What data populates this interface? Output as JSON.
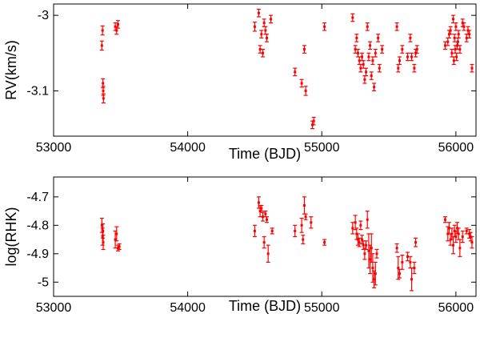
{
  "chart_data": [
    {
      "type": "scatter",
      "title": "",
      "xlabel": "Time (BJD)",
      "ylabel": "RV(km/s)",
      "xlim": [
        53000,
        56150
      ],
      "ylim": [
        -3.16,
        -2.985
      ],
      "xticks": [
        53000,
        54000,
        55000,
        56000
      ],
      "xtick_labels": [
        "53000",
        "54000",
        "55000",
        "56000"
      ],
      "yticks": [
        -3,
        -3.1
      ],
      "ytick_labels": [
        "-3",
        "-3.1"
      ],
      "grid": false,
      "legend": "none",
      "error_bars": true,
      "series": [
        {
          "color": "#ff0000",
          "points": [
            [
              53360,
              -3.04,
              0.006
            ],
            [
              53365,
              -3.02,
              0.006
            ],
            [
              53368,
              -3.09,
              0.006
            ],
            [
              53370,
              -3.1,
              0.006
            ],
            [
              53372,
              -3.11,
              0.006
            ],
            [
              53460,
              -3.015,
              0.005
            ],
            [
              53470,
              -3.02,
              0.005
            ],
            [
              53480,
              -3.012,
              0.005
            ],
            [
              54500,
              -3.015,
              0.006
            ],
            [
              54530,
              -2.997,
              0.005
            ],
            [
              54540,
              -3.045,
              0.005
            ],
            [
              54550,
              -3.025,
              0.005
            ],
            [
              54560,
              -3.05,
              0.005
            ],
            [
              54570,
              -3.01,
              0.005
            ],
            [
              54580,
              -3.02,
              0.005
            ],
            [
              54590,
              -3.03,
              0.005
            ],
            [
              54620,
              -3.005,
              0.005
            ],
            [
              54800,
              -3.075,
              0.005
            ],
            [
              54850,
              -3.09,
              0.005
            ],
            [
              54870,
              -3.045,
              0.005
            ],
            [
              54880,
              -3.1,
              0.006
            ],
            [
              54930,
              -3.145,
              0.005
            ],
            [
              54940,
              -3.14,
              0.005
            ],
            [
              55020,
              -3.015,
              0.005
            ],
            [
              55230,
              -3.003,
              0.005
            ],
            [
              55250,
              -3.045,
              0.005
            ],
            [
              55260,
              -3.03,
              0.005
            ],
            [
              55270,
              -3.05,
              0.005
            ],
            [
              55280,
              -3.06,
              0.005
            ],
            [
              55290,
              -3.07,
              0.005
            ],
            [
              55300,
              -3.055,
              0.005
            ],
            [
              55310,
              -3.065,
              0.005
            ],
            [
              55320,
              -3.085,
              0.005
            ],
            [
              55330,
              -3.075,
              0.005
            ],
            [
              55340,
              -3.015,
              0.005
            ],
            [
              55350,
              -3.055,
              0.005
            ],
            [
              55360,
              -3.04,
              0.005
            ],
            [
              55370,
              -3.08,
              0.005
            ],
            [
              55380,
              -3.06,
              0.005
            ],
            [
              55390,
              -3.095,
              0.005
            ],
            [
              55400,
              -3.05,
              0.005
            ],
            [
              55420,
              -3.03,
              0.005
            ],
            [
              55430,
              -3.07,
              0.005
            ],
            [
              55450,
              -3.045,
              0.005
            ],
            [
              55560,
              -3.015,
              0.005
            ],
            [
              55570,
              -3.07,
              0.005
            ],
            [
              55580,
              -3.06,
              0.005
            ],
            [
              55600,
              -3.045,
              0.005
            ],
            [
              55640,
              -3.055,
              0.005
            ],
            [
              55660,
              -3.03,
              0.005
            ],
            [
              55670,
              -3.055,
              0.005
            ],
            [
              55690,
              -3.07,
              0.005
            ],
            [
              55700,
              -3.05,
              0.005
            ],
            [
              55710,
              -3.045,
              0.005
            ],
            [
              55920,
              -3.04,
              0.005
            ],
            [
              55940,
              -3.035,
              0.005
            ],
            [
              55950,
              -3.025,
              0.005
            ],
            [
              55960,
              -3.02,
              0.005
            ],
            [
              55970,
              -3.05,
              0.005
            ],
            [
              55980,
              -3.005,
              0.005
            ],
            [
              55985,
              -3.06,
              0.005
            ],
            [
              55990,
              -3.03,
              0.005
            ],
            [
              55995,
              -3.045,
              0.005
            ],
            [
              56000,
              -3.015,
              0.005
            ],
            [
              56005,
              -3.055,
              0.005
            ],
            [
              56010,
              -3.04,
              0.005
            ],
            [
              56015,
              -3.035,
              0.005
            ],
            [
              56020,
              -3.025,
              0.005
            ],
            [
              56030,
              -3.045,
              0.005
            ],
            [
              56050,
              -3.01,
              0.005
            ],
            [
              56060,
              -3.015,
              0.005
            ],
            [
              56080,
              -3.03,
              0.005
            ],
            [
              56090,
              -3.02,
              0.005
            ],
            [
              56100,
              -3.025,
              0.005
            ],
            [
              56120,
              -3.07,
              0.005
            ]
          ]
        }
      ]
    },
    {
      "type": "scatter",
      "title": "",
      "xlabel": "Time (BJD)",
      "ylabel": "log(RHK)",
      "xlim": [
        53000,
        56150
      ],
      "ylim": [
        -5.05,
        -4.63
      ],
      "xticks": [
        53000,
        54000,
        55000,
        56000
      ],
      "xtick_labels": [
        "53000",
        "54000",
        "55000",
        "56000"
      ],
      "yticks": [
        -4.7,
        -4.8,
        -4.9,
        -5
      ],
      "ytick_labels": [
        "-4.7",
        "-4.8",
        "-4.9",
        "-5"
      ],
      "grid": false,
      "legend": "none",
      "error_bars": true,
      "series": [
        {
          "color": "#ff0000",
          "points": [
            [
              53360,
              -4.8,
              0.025
            ],
            [
              53365,
              -4.84,
              0.03
            ],
            [
              53368,
              -4.82,
              0.025
            ],
            [
              53370,
              -4.86,
              0.025
            ],
            [
              53460,
              -4.85,
              0.03
            ],
            [
              53470,
              -4.83,
              0.025
            ],
            [
              53480,
              -4.88,
              0.01
            ],
            [
              53490,
              -4.875,
              0.01
            ],
            [
              54500,
              -4.82,
              0.02
            ],
            [
              54530,
              -4.72,
              0.02
            ],
            [
              54540,
              -4.75,
              0.02
            ],
            [
              54550,
              -4.74,
              0.01
            ],
            [
              54560,
              -4.77,
              0.015
            ],
            [
              54570,
              -4.86,
              0.02
            ],
            [
              54580,
              -4.76,
              0.01
            ],
            [
              54590,
              -4.78,
              0.01
            ],
            [
              54600,
              -4.9,
              0.03
            ],
            [
              54630,
              -4.82,
              0.01
            ],
            [
              54800,
              -4.82,
              0.02
            ],
            [
              54850,
              -4.8,
              0.025
            ],
            [
              54860,
              -4.85,
              0.015
            ],
            [
              54870,
              -4.73,
              0.03
            ],
            [
              54880,
              -4.77,
              0.01
            ],
            [
              54920,
              -4.79,
              0.02
            ],
            [
              55020,
              -4.86,
              0.01
            ],
            [
              55230,
              -4.81,
              0.02
            ],
            [
              55250,
              -4.79,
              0.025
            ],
            [
              55260,
              -4.83,
              0.02
            ],
            [
              55270,
              -4.85,
              0.02
            ],
            [
              55280,
              -4.86,
              0.015
            ],
            [
              55290,
              -4.8,
              0.015
            ],
            [
              55300,
              -4.85,
              0.015
            ],
            [
              55310,
              -4.87,
              0.015
            ],
            [
              55320,
              -4.9,
              0.02
            ],
            [
              55330,
              -4.87,
              0.015
            ],
            [
              55340,
              -4.78,
              0.03
            ],
            [
              55350,
              -4.89,
              0.06
            ],
            [
              55360,
              -4.92,
              0.05
            ],
            [
              55370,
              -4.88,
              0.05
            ],
            [
              55380,
              -4.95,
              0.05
            ],
            [
              55390,
              -4.99,
              0.03
            ],
            [
              55400,
              -4.97,
              0.04
            ],
            [
              55410,
              -4.9,
              0.015
            ],
            [
              55560,
              -4.88,
              0.015
            ],
            [
              55570,
              -4.95,
              0.04
            ],
            [
              55580,
              -4.97,
              0.015
            ],
            [
              55600,
              -4.93,
              0.025
            ],
            [
              55640,
              -4.91,
              0.015
            ],
            [
              55660,
              -4.93,
              0.02
            ],
            [
              55670,
              -4.99,
              0.04
            ],
            [
              55690,
              -4.95,
              0.02
            ],
            [
              55700,
              -4.86,
              0.015
            ],
            [
              55920,
              -4.78,
              0.01
            ],
            [
              55940,
              -4.83,
              0.025
            ],
            [
              55950,
              -4.81,
              0.02
            ],
            [
              55960,
              -4.85,
              0.02
            ],
            [
              55970,
              -4.83,
              0.02
            ],
            [
              55980,
              -4.87,
              0.03
            ],
            [
              55990,
              -4.82,
              0.02
            ],
            [
              56000,
              -4.84,
              0.02
            ],
            [
              56010,
              -4.81,
              0.02
            ],
            [
              56020,
              -4.83,
              0.02
            ],
            [
              56030,
              -4.88,
              0.03
            ],
            [
              56050,
              -4.84,
              0.02
            ],
            [
              56080,
              -4.82,
              0.01
            ],
            [
              56100,
              -4.83,
              0.015
            ],
            [
              56110,
              -4.84,
              0.015
            ],
            [
              56120,
              -4.86,
              0.02
            ]
          ]
        }
      ]
    }
  ]
}
